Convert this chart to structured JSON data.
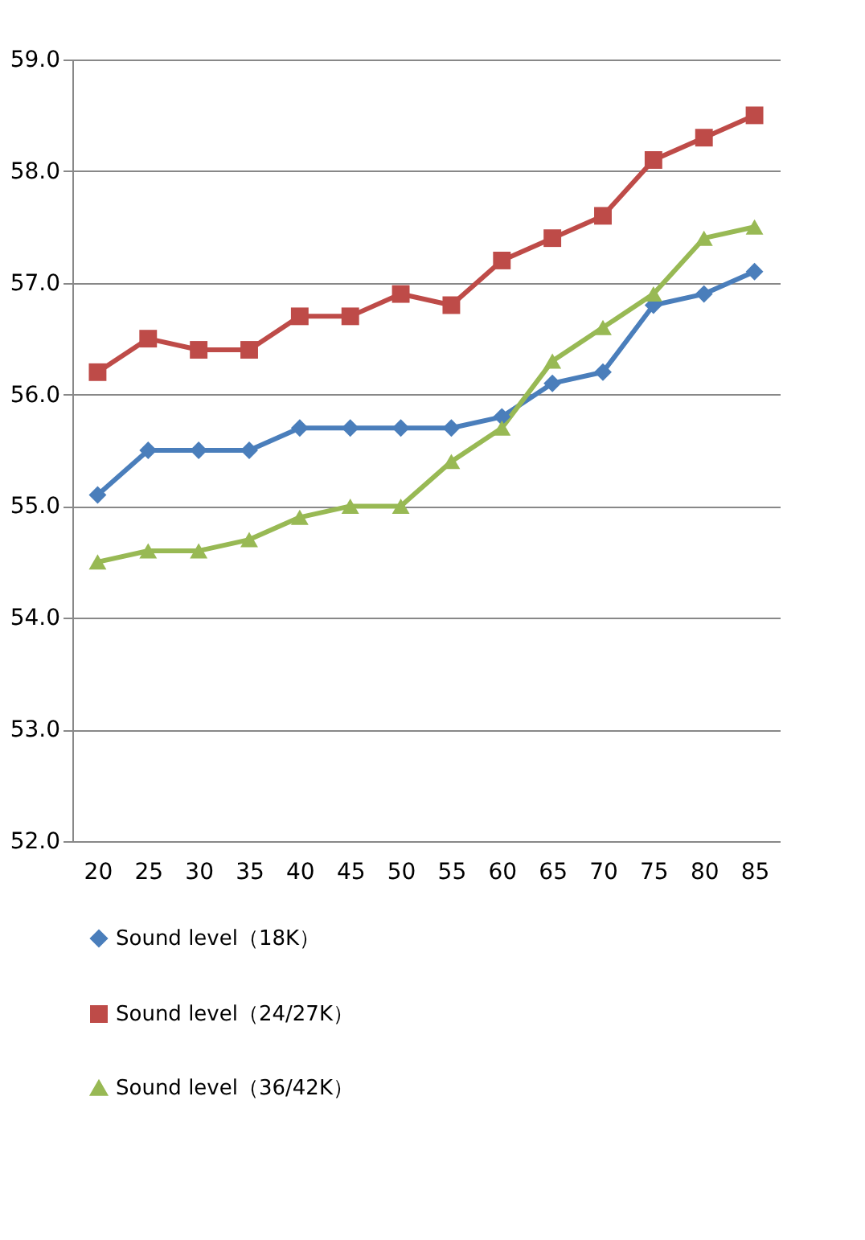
{
  "chart_data": {
    "type": "line",
    "categories": [
      "20",
      "25",
      "30",
      "35",
      "40",
      "45",
      "50",
      "55",
      "60",
      "65",
      "70",
      "75",
      "80",
      "85"
    ],
    "series": [
      {
        "name": "Sound level（18K）",
        "color": "#4a7ebb",
        "marker": "diamond",
        "values": [
          55.1,
          55.5,
          55.5,
          55.5,
          55.7,
          55.7,
          55.7,
          55.7,
          55.8,
          56.1,
          56.2,
          56.8,
          56.9,
          57.1
        ]
      },
      {
        "name": "Sound level（24/27K）",
        "color": "#be4b48",
        "marker": "square",
        "values": [
          56.2,
          56.5,
          56.4,
          56.4,
          56.7,
          56.7,
          56.9,
          56.8,
          57.2,
          57.4,
          57.6,
          58.1,
          58.3,
          58.5
        ]
      },
      {
        "name": "Sound level（36/42K）",
        "color": "#98b954",
        "marker": "triangle",
        "values": [
          54.5,
          54.6,
          54.6,
          54.7,
          54.9,
          55.0,
          55.0,
          55.4,
          55.7,
          56.3,
          56.6,
          56.9,
          57.4,
          57.5
        ]
      }
    ],
    "ylim": [
      52,
      59
    ],
    "yticks": [
      {
        "value": 52,
        "label": "52.0"
      },
      {
        "value": 53,
        "label": "53.0"
      },
      {
        "value": 54,
        "label": "54.0"
      },
      {
        "value": 55,
        "label": "55.0"
      },
      {
        "value": 56,
        "label": "56.0"
      },
      {
        "value": 57,
        "label": "57.0"
      },
      {
        "value": 58,
        "label": "58.0"
      },
      {
        "value": 59,
        "label": "59.0"
      }
    ],
    "grid": "y",
    "legend": "bottom",
    "line_style": "solid"
  }
}
